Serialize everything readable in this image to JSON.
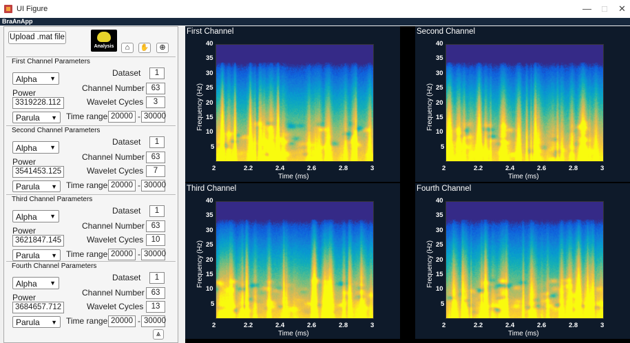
{
  "window": {
    "title": "UI Figure",
    "minimize": "—",
    "maximize": "□",
    "close": "✕"
  },
  "menubar": {
    "title": "BraAnApp"
  },
  "toolbar": {
    "upload_label": "Upload .mat file",
    "analysis_label": "Analysis",
    "home_icon": "⌂",
    "pan_icon": "✋",
    "zoom_icon": "⊕"
  },
  "labels": {
    "dataset": "Dataset",
    "channel_number": "Channel Number",
    "power": "Power",
    "wavelet_cycles": "Wavelet Cycles",
    "time_range": "Time range",
    "dash": "-"
  },
  "channels": [
    {
      "title": "First Channel Parameters",
      "band": "Alpha",
      "dataset": "1",
      "channel": "63",
      "power": "3319228.112",
      "cycles": "3",
      "colormap": "Parula",
      "t_start": "20000",
      "t_end": "30000"
    },
    {
      "title": "Second Channel Parameters",
      "band": "Alpha",
      "dataset": "1",
      "channel": "63",
      "power": "3541453.125",
      "cycles": "7",
      "colormap": "Parula",
      "t_start": "20000",
      "t_end": "30000"
    },
    {
      "title": "Third Channel Parameters",
      "band": "Alpha",
      "dataset": "1",
      "channel": "63",
      "power": "3621847.145",
      "cycles": "10",
      "colormap": "Parula",
      "t_start": "20000",
      "t_end": "30000"
    },
    {
      "title": "Fourth Channel Parameters",
      "band": "Alpha",
      "dataset": "1",
      "channel": "63",
      "power": "3684657.712",
      "cycles": "13",
      "colormap": "Parula",
      "t_start": "20000",
      "t_end": "30000"
    }
  ],
  "collapse_icon": "⩓",
  "plots": [
    {
      "title": "First Channel",
      "ylabel": "Frequency (Hz)",
      "xlabel": "Time (ms)"
    },
    {
      "title": "Second Channel",
      "ylabel": "Frequency (Hz)",
      "xlabel": "Time (ms)"
    },
    {
      "title": "Third Channel",
      "ylabel": "Frequency (Hz)",
      "xlabel": "Time (ms)"
    },
    {
      "title": "Fourth Channel",
      "ylabel": "Frequency (Hz)",
      "xlabel": "Time (ms)"
    }
  ],
  "axes": {
    "yticks": [
      "40",
      "35",
      "30",
      "25",
      "20",
      "15",
      "10",
      "5"
    ],
    "xticks": [
      "2",
      "2.2",
      "2.4",
      "2.6",
      "2.8",
      "3"
    ],
    "ylim": [
      0,
      40
    ],
    "xlim": [
      2,
      3
    ]
  },
  "colors": {
    "menubar": "#17283d",
    "plot_bg": "#000000",
    "colormap": "parula"
  }
}
